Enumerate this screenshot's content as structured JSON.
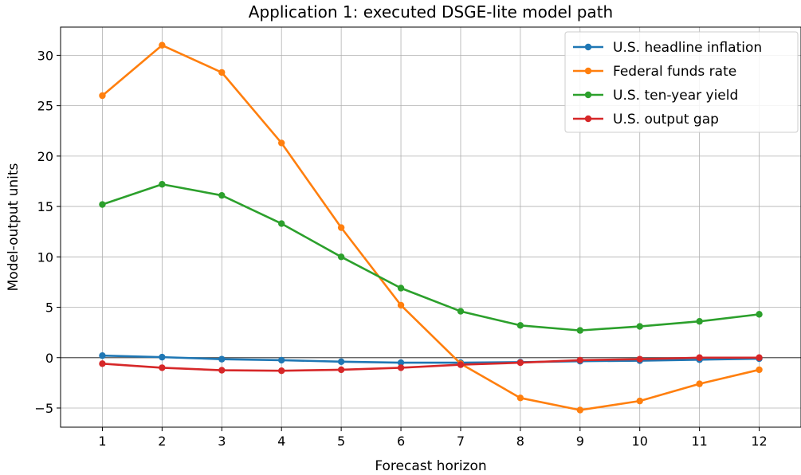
{
  "chart_data": {
    "type": "line",
    "title": "Application 1: executed DSGE-lite model path",
    "xlabel": "Forecast horizon",
    "ylabel": "Model-output units",
    "x": [
      1,
      2,
      3,
      4,
      5,
      6,
      7,
      8,
      9,
      10,
      11,
      12
    ],
    "xlim": [
      0.3,
      12.7
    ],
    "ylim": [
      -6.9,
      32.8
    ],
    "x_ticks": [
      "1",
      "2",
      "3",
      "4",
      "5",
      "6",
      "7",
      "8",
      "9",
      "10",
      "11",
      "12"
    ],
    "y_ticks": [
      -5,
      0,
      5,
      10,
      15,
      20,
      25,
      30
    ],
    "y_tick_labels": [
      "−5",
      "0",
      "5",
      "10",
      "15",
      "20",
      "25",
      "30"
    ],
    "grid": true,
    "zero_line": true,
    "legend_position": "top-right",
    "series": [
      {
        "name": "U.S. headline inflation",
        "color": "#1f77b4",
        "values": [
          0.2,
          0.05,
          -0.15,
          -0.25,
          -0.4,
          -0.5,
          -0.5,
          -0.45,
          -0.35,
          -0.3,
          -0.2,
          -0.1
        ]
      },
      {
        "name": "Federal funds rate",
        "color": "#ff7f0e",
        "values": [
          26.0,
          31.0,
          28.3,
          21.3,
          12.9,
          5.2,
          -0.6,
          -4.0,
          -5.2,
          -4.3,
          -2.6,
          -1.2
        ]
      },
      {
        "name": "U.S. ten-year yield",
        "color": "#2ca02c",
        "values": [
          15.2,
          17.2,
          16.1,
          13.3,
          10.0,
          6.9,
          4.6,
          3.2,
          2.7,
          3.1,
          3.6,
          4.3
        ]
      },
      {
        "name": "U.S. output gap",
        "color": "#d62728",
        "values": [
          -0.6,
          -1.0,
          -1.25,
          -1.3,
          -1.2,
          -1.0,
          -0.7,
          -0.5,
          -0.25,
          -0.15,
          0.0,
          0.0
        ]
      }
    ]
  }
}
